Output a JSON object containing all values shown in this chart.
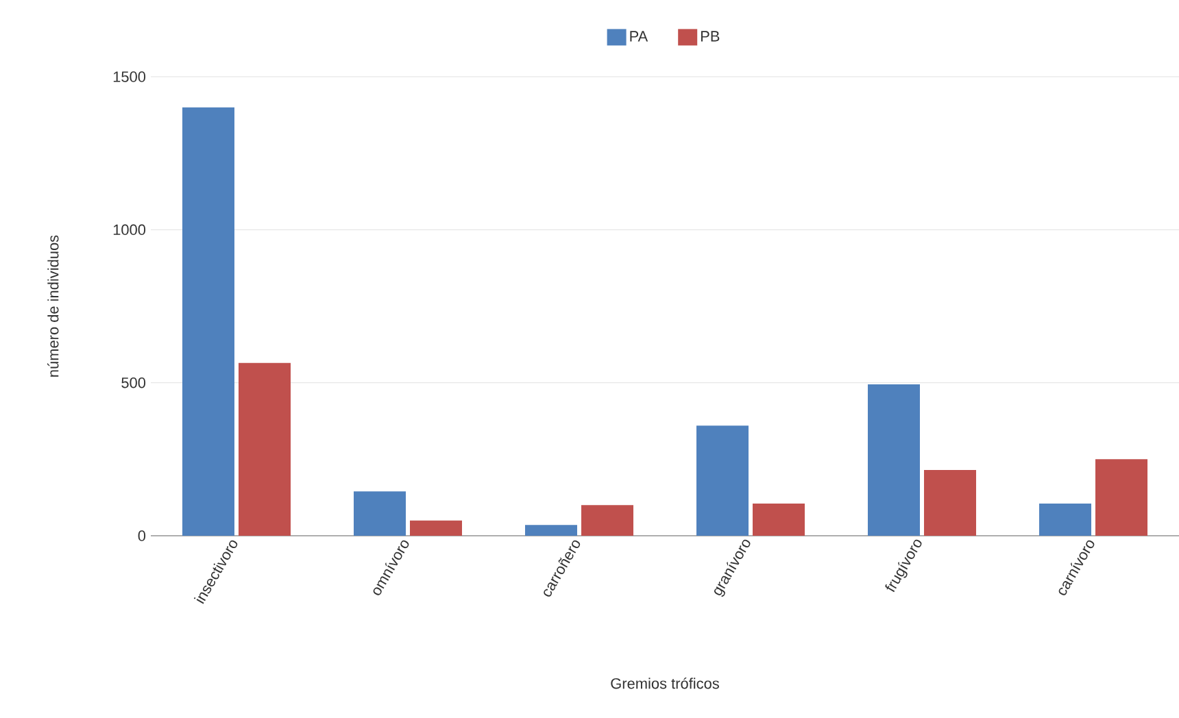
{
  "chart_data": {
    "type": "bar",
    "xlabel": "Gremios tróficos",
    "ylabel": "número de individuos",
    "categories": [
      "insectivoro",
      "omnívoro",
      "carroñero",
      "granívoro",
      "frugívoro",
      "carnívoro"
    ],
    "series": [
      {
        "name": "PA",
        "color": "#4f81bd",
        "values": [
          1400,
          145,
          35,
          360,
          495,
          105
        ]
      },
      {
        "name": "PB",
        "color": "#c0504d",
        "values": [
          565,
          50,
          100,
          105,
          215,
          250
        ]
      }
    ],
    "ylim": [
      0,
      1500
    ],
    "yticks": [
      0,
      500,
      1000,
      1500
    ],
    "grid": "y",
    "legend": "top"
  }
}
